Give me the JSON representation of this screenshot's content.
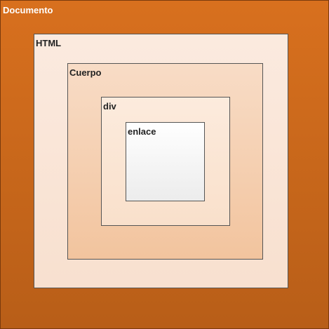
{
  "colors": {
    "document_top": "#d8701e",
    "document_bottom": "#b85e18",
    "html_top": "#fbeadf",
    "html_bottom": "#f8e0cf",
    "body_top": "#f8dcc6",
    "body_bottom": "#f2c49e",
    "div_top": "#fcebdd",
    "div_bottom": "#f9e0cb",
    "link_top": "#ffffff",
    "link_bottom": "#ececec"
  },
  "boxes": {
    "document": {
      "label": "Documento"
    },
    "html": {
      "label": "HTML"
    },
    "body": {
      "label": "Cuerpo"
    },
    "div": {
      "label": "div"
    },
    "link": {
      "label": "enlace"
    }
  }
}
